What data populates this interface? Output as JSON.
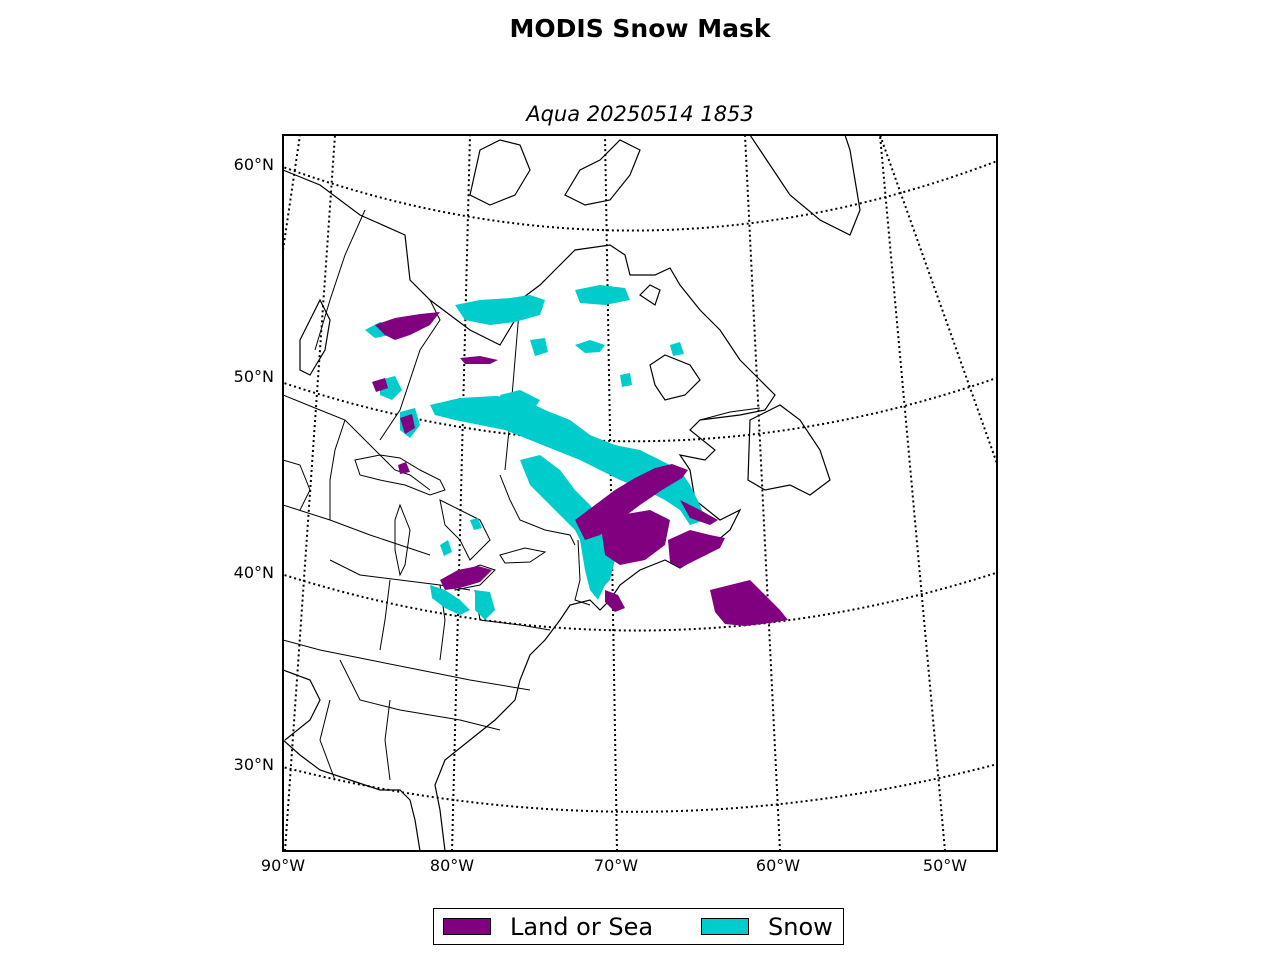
{
  "title": "MODIS Snow Mask",
  "subtitle": "Aqua 20250514 1853",
  "lat_labels": [
    "60°N",
    "50°N",
    "40°N",
    "30°N"
  ],
  "lon_labels": [
    "90°W",
    "80°W",
    "70°W",
    "60°W",
    "50°W"
  ],
  "legend": [
    {
      "label": "Land or Sea",
      "color": "#800080"
    },
    {
      "label": "Snow",
      "color": "#00cccc"
    }
  ],
  "colors": {
    "land_or_sea": "#800080",
    "snow": "#00cccc"
  }
}
